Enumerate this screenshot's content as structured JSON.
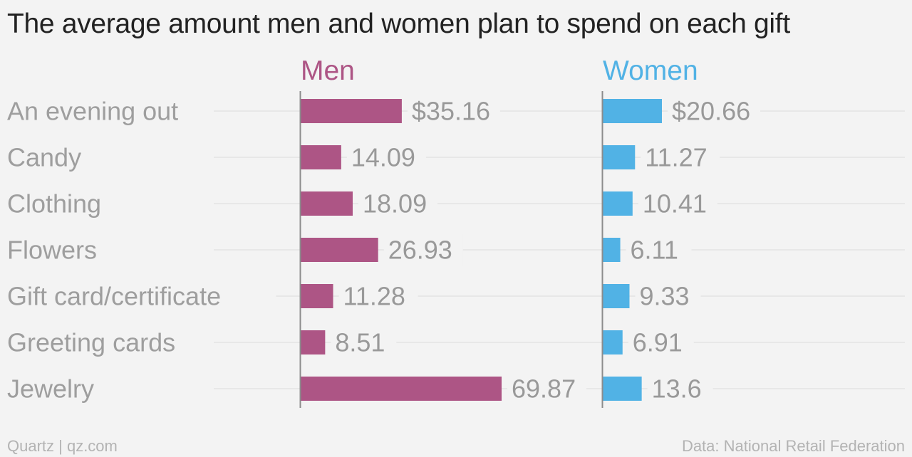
{
  "title": "The average amount men and women plan to spend on each gift",
  "footer": {
    "credit": "Quartz | qz.com",
    "source": "Data: National Retail Federation"
  },
  "colors": {
    "men": "#ad5585",
    "women": "#51b2e5",
    "category_text": "#9e9e9e",
    "value_text": "#999999",
    "gridline": "#e3e3e3",
    "axis": "#8c8c8c"
  },
  "chart_data": {
    "type": "bar",
    "orientation": "horizontal",
    "layout": "small-multiples",
    "categories": [
      "An evening out",
      "Candy",
      "Clothing",
      "Flowers",
      "Gift card/certificate",
      "Greeting cards",
      "Jewelry"
    ],
    "series": [
      {
        "name": "Men",
        "values": [
          35.16,
          14.09,
          18.09,
          26.93,
          11.28,
          8.51,
          69.87
        ],
        "labels": [
          "$35.16",
          "14.09",
          "18.09",
          "26.93",
          "11.28",
          "8.51",
          "69.87"
        ]
      },
      {
        "name": "Women",
        "values": [
          20.66,
          11.27,
          10.41,
          6.11,
          9.33,
          6.91,
          13.6
        ],
        "labels": [
          "$20.66",
          "11.27",
          "10.41",
          "6.11",
          "9.33",
          "6.91",
          "13.6"
        ]
      }
    ],
    "grid": true,
    "legend": "series names above panels"
  }
}
